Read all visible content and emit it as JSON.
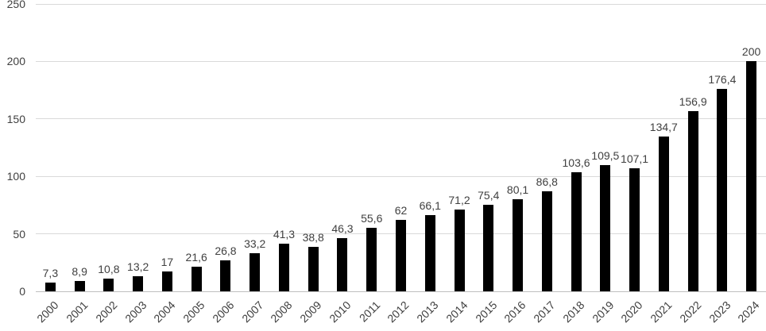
{
  "chart_data": {
    "type": "bar",
    "title": "",
    "xlabel": "",
    "ylabel": "",
    "categories": [
      "2000",
      "2001",
      "2002",
      "2003",
      "2004",
      "2005",
      "2006",
      "2007",
      "2008",
      "2009",
      "2010",
      "2011",
      "2012",
      "2013",
      "2014",
      "2015",
      "2016",
      "2017",
      "2018",
      "2019",
      "2020",
      "2021",
      "2022",
      "2023",
      "2024"
    ],
    "values": [
      7.3,
      8.9,
      10.8,
      13.2,
      17,
      21.6,
      26.8,
      33.2,
      41.3,
      38.8,
      46.3,
      55.6,
      62,
      66.1,
      71.2,
      75.4,
      80.1,
      86.8,
      103.6,
      109.5,
      107.1,
      134.7,
      156.9,
      176.4,
      200
    ],
    "value_labels": [
      "7,3",
      "8,9",
      "10,8",
      "13,2",
      "17",
      "21,6",
      "26,8",
      "33,2",
      "41,3",
      "38,8",
      "46,3",
      "55,6",
      "62",
      "66,1",
      "71,2",
      "75,4",
      "80,1",
      "86,8",
      "103,6",
      "109,5",
      "107,1",
      "134,7",
      "156,9",
      "176,4",
      "200"
    ],
    "yticks": [
      0,
      50,
      100,
      150,
      200,
      250
    ],
    "ytick_labels": [
      "0",
      "50",
      "100",
      "150",
      "200",
      "250"
    ],
    "ylim": [
      0,
      250
    ],
    "grid": true,
    "legend": false,
    "bar_color": "#000000",
    "gridline_color": "#d9d9d9",
    "axis_line_color": "#bfbfbf",
    "text_color": "#404040",
    "background_color": "#ffffff"
  }
}
